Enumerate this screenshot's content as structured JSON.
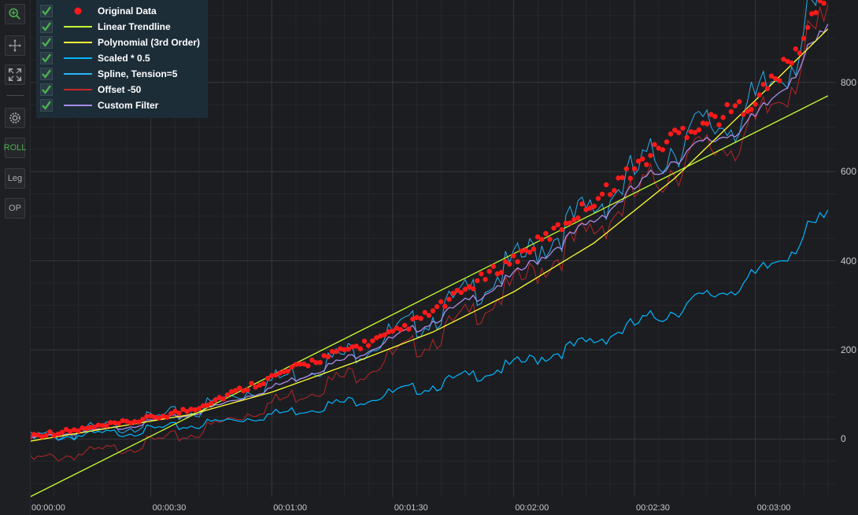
{
  "toolbar": {
    "buttons": [
      {
        "name": "zoom-extents-button",
        "icon": "zoom-in-icon"
      },
      {
        "name": "pan-button",
        "icon": "pan-move-icon"
      },
      {
        "name": "fit-button",
        "icon": "fullscreen-icon"
      },
      {
        "name": "settings-button",
        "icon": "gear-icon"
      },
      {
        "name": "roll-button",
        "label": "ROLL"
      },
      {
        "name": "legend-button",
        "label": "Leg"
      },
      {
        "name": "options-button",
        "label": "OP"
      }
    ]
  },
  "colors": {
    "background": "#1c1d21",
    "grid_major": "#34363b",
    "grid_minor": "#26272b",
    "original": "#ff1a1a",
    "linear": "#c6ff33",
    "polynomial": "#ffff33",
    "scaled": "#00b7ff",
    "spline": "#29b6f6",
    "offset": "#c62828",
    "custom": "#a98be8",
    "check": "#4caf50"
  },
  "chart_data": {
    "type": "line",
    "xaxis": {
      "ticks": [
        "00:00:00",
        "00:00:30",
        "00:01:00",
        "00:01:30",
        "00:02:00",
        "00:02:30",
        "00:03:00"
      ],
      "tick_seconds": [
        0,
        30,
        60,
        90,
        120,
        150,
        180
      ],
      "range_seconds": [
        0,
        200
      ]
    },
    "yaxis": {
      "ticks": [
        "0",
        "200",
        "400",
        "600",
        "800"
      ],
      "tick_values": [
        0,
        200,
        400,
        600,
        800
      ],
      "range": [
        -130,
        985
      ],
      "position": "right"
    },
    "grid": true,
    "legend_position": "top-left",
    "series": [
      {
        "name": "Original Data",
        "kind": "scatter+line",
        "color": "#ff1a1a",
        "x_seconds": [
          0,
          10,
          20,
          30,
          40,
          50,
          60,
          70,
          80,
          90,
          100,
          110,
          120,
          130,
          140,
          150,
          160,
          170,
          180,
          190,
          198
        ],
        "values": [
          2,
          12,
          25,
          40,
          60,
          95,
          130,
          165,
          195,
          225,
          275,
          335,
          390,
          450,
          520,
          590,
          665,
          700,
          740,
          840,
          990
        ]
      },
      {
        "name": "Linear Trendline",
        "color": "#c6ff33",
        "x_seconds": [
          0,
          198
        ],
        "values": [
          -130,
          770
        ]
      },
      {
        "name": "Polynomial (3rd Order)",
        "color": "#ffff33",
        "x_seconds": [
          0,
          20,
          40,
          60,
          80,
          100,
          120,
          140,
          160,
          180,
          198
        ],
        "values": [
          -5,
          25,
          55,
          105,
          170,
          240,
          330,
          440,
          585,
          760,
          920
        ]
      },
      {
        "name": "Scaled * 0.5",
        "color": "#00b7ff",
        "x_seconds": [
          0,
          20,
          40,
          60,
          80,
          100,
          120,
          140,
          160,
          180,
          198
        ],
        "values": [
          0,
          12,
          30,
          55,
          85,
          120,
          165,
          220,
          290,
          360,
          500
        ]
      },
      {
        "name": "Spline, Tension=5",
        "color": "#29b6f6",
        "x_seconds": [
          0,
          20,
          40,
          60,
          80,
          100,
          120,
          140,
          160,
          180,
          198
        ],
        "values": [
          2,
          25,
          60,
          130,
          195,
          275,
          390,
          520,
          665,
          740,
          990
        ]
      },
      {
        "name": "Offset -50",
        "color": "#c62828",
        "x_seconds": [
          0,
          20,
          40,
          60,
          80,
          100,
          120,
          140,
          160,
          180,
          198
        ],
        "values": [
          -48,
          -25,
          10,
          80,
          145,
          225,
          340,
          470,
          615,
          690,
          940
        ]
      },
      {
        "name": "Custom Filter",
        "color": "#a98be8",
        "x_seconds": [
          0,
          20,
          40,
          60,
          80,
          100,
          120,
          140,
          160,
          180,
          198
        ],
        "values": [
          2,
          22,
          55,
          115,
          185,
          265,
          365,
          490,
          630,
          715,
          920
        ]
      }
    ]
  },
  "legend": {
    "items": [
      {
        "label": "Original Data"
      },
      {
        "label": "Linear Trendline"
      },
      {
        "label": "Polynomial (3rd Order)"
      },
      {
        "label": "Scaled * 0.5"
      },
      {
        "label": "Spline, Tension=5"
      },
      {
        "label": "Offset -50"
      },
      {
        "label": "Custom Filter"
      }
    ]
  }
}
